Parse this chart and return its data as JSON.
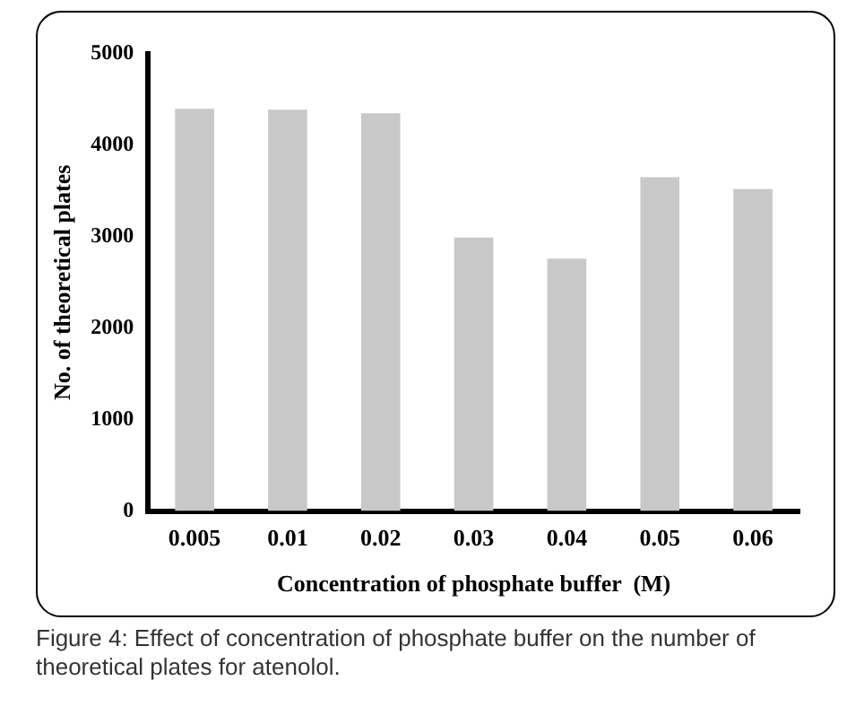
{
  "chart_data": {
    "type": "bar",
    "xlabel": "Concentration of phosphate buffer  (M)",
    "ylabel": "No. of theoretical plates",
    "categories": [
      "0.005",
      "0.01",
      "0.02",
      "0.03",
      "0.04",
      "0.05",
      "0.06"
    ],
    "values": [
      4400,
      4390,
      4350,
      2990,
      2760,
      3650,
      3520
    ],
    "color": "#c8c8c8",
    "ylim": [
      0,
      5000
    ],
    "yticks": [
      0,
      1000,
      2000,
      3000,
      4000,
      5000
    ],
    "grid": false,
    "legend": false,
    "annotations": [
      "Figure 4: Effect of concentration of phosphate buffer on the number of theoretical plates for atenolol."
    ]
  }
}
